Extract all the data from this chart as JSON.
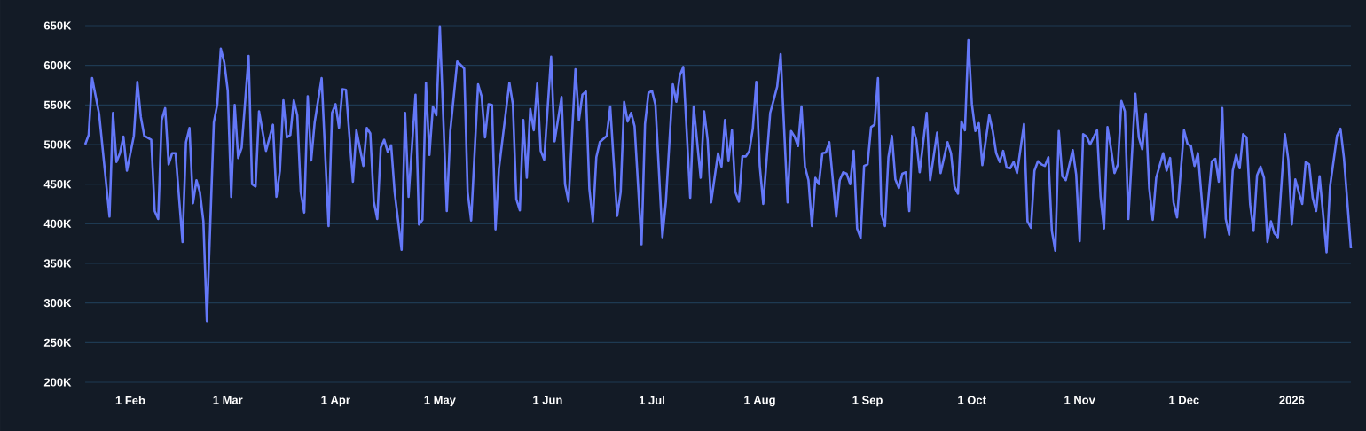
{
  "chart_data": {
    "type": "line",
    "color": "#6478f8",
    "grid": "y",
    "xlim": [
      "2025-01-19",
      "2026-01-18"
    ],
    "xticks": [
      {
        "value": "2025-02-01",
        "label": "1 Feb"
      },
      {
        "value": "2025-03-01",
        "label": "1 Mar"
      },
      {
        "value": "2025-04-01",
        "label": "1 Apr"
      },
      {
        "value": "2025-05-01",
        "label": "1 May"
      },
      {
        "value": "2025-06-01",
        "label": "1 Jun"
      },
      {
        "value": "2025-07-01",
        "label": "1 Jul"
      },
      {
        "value": "2025-08-01",
        "label": "1 Aug"
      },
      {
        "value": "2025-09-01",
        "label": "1 Sep"
      },
      {
        "value": "2025-10-01",
        "label": "1 Oct"
      },
      {
        "value": "2025-11-01",
        "label": "1 Nov"
      },
      {
        "value": "2025-12-01",
        "label": "1 Dec"
      },
      {
        "value": "2026-01-01",
        "label": "2026"
      }
    ],
    "ylim": [
      200,
      650
    ],
    "yticks": [
      {
        "value": 200,
        "label": "200K"
      },
      {
        "value": 250,
        "label": "250K"
      },
      {
        "value": 300,
        "label": "300K"
      },
      {
        "value": 350,
        "label": "350K"
      },
      {
        "value": 400,
        "label": "400K"
      },
      {
        "value": 450,
        "label": "450K"
      },
      {
        "value": 500,
        "label": "500K"
      },
      {
        "value": 550,
        "label": "550K"
      },
      {
        "value": 600,
        "label": "600K"
      },
      {
        "value": 650,
        "label": "650K"
      }
    ],
    "x": [
      "2025-01-19",
      "2025-01-20",
      "2025-01-21",
      "2025-01-23",
      "2025-01-26",
      "2025-01-27",
      "2025-01-28",
      "2025-01-29",
      "2025-01-30",
      "2025-01-31",
      "2025-02-02",
      "2025-02-03",
      "2025-02-04",
      "2025-02-05",
      "2025-02-07",
      "2025-02-08",
      "2025-02-09",
      "2025-02-10",
      "2025-02-11",
      "2025-02-12",
      "2025-02-13",
      "2025-02-14",
      "2025-02-16",
      "2025-02-17",
      "2025-02-18",
      "2025-02-19",
      "2025-02-20",
      "2025-02-21",
      "2025-02-22",
      "2025-02-23",
      "2025-02-25",
      "2025-02-26",
      "2025-02-27",
      "2025-02-28",
      "2025-03-01",
      "2025-03-02",
      "2025-03-03",
      "2025-03-04",
      "2025-03-05",
      "2025-03-07",
      "2025-03-08",
      "2025-03-09",
      "2025-03-10",
      "2025-03-12",
      "2025-03-14",
      "2025-03-15",
      "2025-03-16",
      "2025-03-17",
      "2025-03-18",
      "2025-03-19",
      "2025-03-20",
      "2025-03-21",
      "2025-03-22",
      "2025-03-23",
      "2025-03-24",
      "2025-03-25",
      "2025-03-26",
      "2025-03-28",
      "2025-03-30",
      "2025-03-31",
      "2025-04-01",
      "2025-04-02",
      "2025-04-03",
      "2025-04-04",
      "2025-04-06",
      "2025-04-07",
      "2025-04-09",
      "2025-04-10",
      "2025-04-11",
      "2025-04-12",
      "2025-04-13",
      "2025-04-14",
      "2025-04-15",
      "2025-04-16",
      "2025-04-17",
      "2025-04-18",
      "2025-04-20",
      "2025-04-21",
      "2025-04-22",
      "2025-04-24",
      "2025-04-25",
      "2025-04-26",
      "2025-04-27",
      "2025-04-28",
      "2025-04-29",
      "2025-04-30",
      "2025-05-01",
      "2025-05-03",
      "2025-05-04",
      "2025-05-06",
      "2025-05-08",
      "2025-05-09",
      "2025-05-10",
      "2025-05-12",
      "2025-05-13",
      "2025-05-14",
      "2025-05-15",
      "2025-05-16",
      "2025-05-17",
      "2025-05-18",
      "2025-05-21",
      "2025-05-22",
      "2025-05-23",
      "2025-05-24",
      "2025-05-25",
      "2025-05-26",
      "2025-05-27",
      "2025-05-28",
      "2025-05-29",
      "2025-05-30",
      "2025-05-31",
      "2025-06-02",
      "2025-06-03",
      "2025-06-05",
      "2025-06-06",
      "2025-06-07",
      "2025-06-09",
      "2025-06-10",
      "2025-06-11",
      "2025-06-12",
      "2025-06-13",
      "2025-06-14",
      "2025-06-15",
      "2025-06-16",
      "2025-06-18",
      "2025-06-19",
      "2025-06-20",
      "2025-06-21",
      "2025-06-22",
      "2025-06-23",
      "2025-06-24",
      "2025-06-25",
      "2025-06-26",
      "2025-06-28",
      "2025-06-29",
      "2025-06-30",
      "2025-07-01",
      "2025-07-02",
      "2025-07-04",
      "2025-07-05",
      "2025-07-07",
      "2025-07-08",
      "2025-07-09",
      "2025-07-10",
      "2025-07-12",
      "2025-07-13",
      "2025-07-15",
      "2025-07-16",
      "2025-07-17",
      "2025-07-18",
      "2025-07-20",
      "2025-07-21",
      "2025-07-22",
      "2025-07-23",
      "2025-07-24",
      "2025-07-25",
      "2025-07-26",
      "2025-07-27",
      "2025-07-28",
      "2025-07-29",
      "2025-07-30",
      "2025-07-31",
      "2025-08-01",
      "2025-08-02",
      "2025-08-04",
      "2025-08-05",
      "2025-08-06",
      "2025-08-07",
      "2025-08-09",
      "2025-08-10",
      "2025-08-11",
      "2025-08-12",
      "2025-08-13",
      "2025-08-14",
      "2025-08-15",
      "2025-08-16",
      "2025-08-17",
      "2025-08-18",
      "2025-08-19",
      "2025-08-20",
      "2025-08-21",
      "2025-08-23",
      "2025-08-24",
      "2025-08-25",
      "2025-08-26",
      "2025-08-27",
      "2025-08-28",
      "2025-08-29",
      "2025-08-30",
      "2025-08-31",
      "2025-09-01",
      "2025-09-02",
      "2025-09-03",
      "2025-09-04",
      "2025-09-05",
      "2025-09-06",
      "2025-09-07",
      "2025-09-08",
      "2025-09-09",
      "2025-09-10",
      "2025-09-11",
      "2025-09-12",
      "2025-09-13",
      "2025-09-14",
      "2025-09-15",
      "2025-09-16",
      "2025-09-18",
      "2025-09-19",
      "2025-09-21",
      "2025-09-22",
      "2025-09-24",
      "2025-09-25",
      "2025-09-26",
      "2025-09-27",
      "2025-09-28",
      "2025-09-29",
      "2025-09-30",
      "2025-10-01",
      "2025-10-02",
      "2025-10-03",
      "2025-10-04",
      "2025-10-06",
      "2025-10-07",
      "2025-10-08",
      "2025-10-09",
      "2025-10-10",
      "2025-10-11",
      "2025-10-12",
      "2025-10-13",
      "2025-10-14",
      "2025-10-16",
      "2025-10-17",
      "2025-10-18",
      "2025-10-19",
      "2025-10-20",
      "2025-10-21",
      "2025-10-22",
      "2025-10-23",
      "2025-10-24",
      "2025-10-25",
      "2025-10-26",
      "2025-10-27",
      "2025-10-28",
      "2025-10-30",
      "2025-10-31",
      "2025-11-01",
      "2025-11-02",
      "2025-11-03",
      "2025-11-04",
      "2025-11-06",
      "2025-11-07",
      "2025-11-08",
      "2025-11-09",
      "2025-11-10",
      "2025-11-11",
      "2025-11-12",
      "2025-11-13",
      "2025-11-14",
      "2025-11-15",
      "2025-11-17",
      "2025-11-18",
      "2025-11-19",
      "2025-11-20",
      "2025-11-21",
      "2025-11-22",
      "2025-11-23",
      "2025-11-25",
      "2025-11-26",
      "2025-11-27",
      "2025-11-28",
      "2025-11-29",
      "2025-12-01",
      "2025-12-02",
      "2025-12-03",
      "2025-12-04",
      "2025-12-05",
      "2025-12-07",
      "2025-12-09",
      "2025-12-10",
      "2025-12-11",
      "2025-12-12",
      "2025-12-13",
      "2025-12-14",
      "2025-12-15",
      "2025-12-16",
      "2025-12-17",
      "2025-12-18",
      "2025-12-19",
      "2025-12-20",
      "2025-12-21",
      "2025-12-22",
      "2025-12-23",
      "2025-12-24",
      "2025-12-25",
      "2025-12-26",
      "2025-12-27",
      "2025-12-28",
      "2025-12-30",
      "2025-12-31",
      "2026-01-01",
      "2026-01-02",
      "2026-01-04",
      "2026-01-05",
      "2026-01-06",
      "2026-01-07",
      "2026-01-08",
      "2026-01-09",
      "2026-01-11",
      "2026-01-12",
      "2026-01-14",
      "2026-01-15",
      "2026-01-16",
      "2026-01-18"
    ],
    "values": [
      500,
      512,
      584,
      539,
      409,
      540,
      478,
      489,
      510,
      467,
      511,
      579,
      535,
      511,
      506,
      416,
      406,
      531,
      546,
      475,
      489,
      489,
      377,
      503,
      521,
      426,
      455,
      440,
      403,
      277,
      528,
      551,
      621,
      604,
      568,
      434,
      550,
      483,
      496,
      612,
      450,
      447,
      542,
      492,
      525,
      434,
      467,
      556,
      509,
      512,
      556,
      537,
      440,
      414,
      561,
      480,
      528,
      584,
      397,
      540,
      551,
      521,
      570,
      569,
      453,
      518,
      473,
      521,
      514,
      428,
      406,
      496,
      506,
      491,
      499,
      440,
      367,
      540,
      434,
      563,
      399,
      405,
      578,
      487,
      548,
      537,
      649,
      416,
      517,
      605,
      596,
      440,
      404,
      576,
      561,
      509,
      551,
      550,
      393,
      470,
      578,
      551,
      431,
      417,
      531,
      458,
      545,
      518,
      577,
      492,
      481,
      611,
      504,
      560,
      450,
      428,
      595,
      531,
      563,
      567,
      444,
      403,
      484,
      503,
      511,
      548,
      478,
      410,
      440,
      554,
      529,
      540,
      523,
      374,
      526,
      565,
      568,
      550,
      383,
      428,
      576,
      554,
      587,
      598,
      433,
      548,
      458,
      542,
      506,
      427,
      489,
      472,
      531,
      479,
      518,
      440,
      428,
      485,
      485,
      492,
      520,
      579,
      473,
      425,
      540,
      556,
      573,
      614,
      427,
      517,
      510,
      498,
      548,
      472,
      455,
      397,
      458,
      450,
      489,
      490,
      503,
      409,
      455,
      465,
      463,
      450,
      492,
      394,
      382,
      473,
      475,
      522,
      525,
      584,
      412,
      397,
      484,
      511,
      456,
      445,
      463,
      465,
      416,
      522,
      506,
      465,
      540,
      455,
      515,
      464,
      503,
      489,
      447,
      438,
      529,
      518,
      632,
      551,
      517,
      527,
      474,
      537,
      517,
      489,
      478,
      492,
      471,
      470,
      478,
      464,
      526,
      403,
      395,
      467,
      479,
      475,
      473,
      484,
      391,
      366,
      517,
      460,
      455,
      493,
      462,
      378,
      513,
      510,
      500,
      518,
      434,
      394,
      522,
      495,
      464,
      475,
      555,
      542,
      406,
      564,
      509,
      494,
      539,
      445,
      405,
      458,
      489,
      467,
      483,
      427,
      408,
      518,
      501,
      498,
      473,
      489,
      383,
      479,
      482,
      453,
      546,
      406,
      386,
      467,
      487,
      470,
      513,
      509,
      425,
      391,
      461,
      472,
      458,
      377,
      403,
      388,
      383,
      513,
      481,
      399,
      456,
      425,
      478,
      475,
      433,
      416,
      460,
      364,
      447,
      511,
      520,
      483,
      369
    ]
  }
}
